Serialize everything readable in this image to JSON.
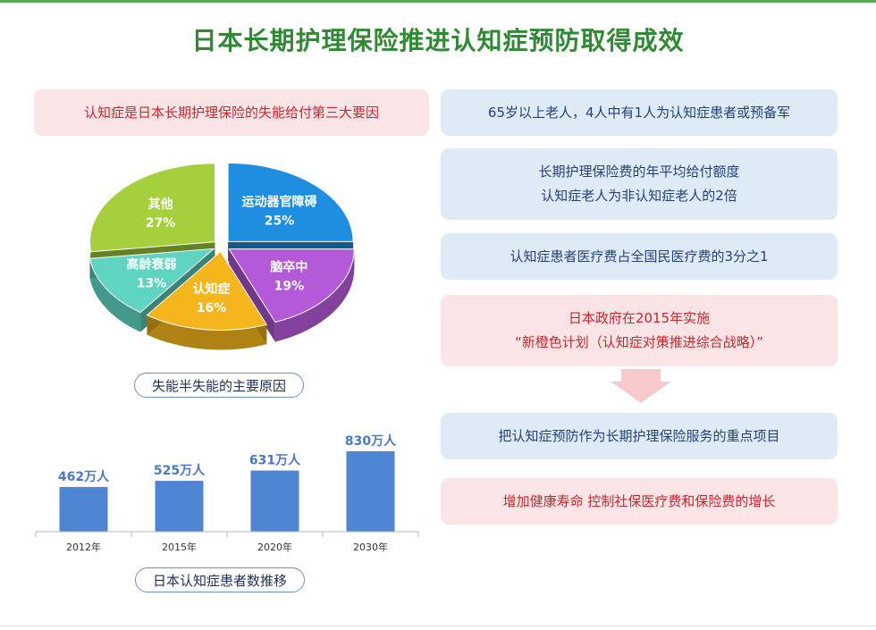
{
  "title": "日本长期护理保险推进认知症预防取得成效",
  "left_top_box": "认知症是日本长期护理保险的失能给付第三大要因",
  "pie_caption": "失能半失能的主要原因",
  "bar_caption": "日本认知症患者数推移",
  "right_boxes": {
    "b1": "65岁以上老人，4人中有1人为认知症患者或预备军",
    "b2_line1": "长期护理保险费的年平均给付额度",
    "b2_line2": "认知症老人为非认知症老人的2倍",
    "b3": "认知症患者医疗费占全国民医疗费的3分之1",
    "b4_line1": "日本政府在2015年实施",
    "b4_line2": "“新橙色计划（认知症对策推进综合战略）”",
    "b5": "把认知症预防作为长期护理保险服务的重点项目",
    "b6": "增加健康寿命  控制社保医疗费和保险费的增长"
  },
  "colors": {
    "title": "#2f8a33",
    "pink_text": "#c5282f",
    "blue_text": "#24427a",
    "bar": "#4f86d2",
    "bar_label": "#4a78c2"
  },
  "chart_data": [
    {
      "type": "pie",
      "title": "",
      "slices": [
        {
          "label": "运动器官障碍",
          "value": 25,
          "value_label": "25%",
          "color": "#1f8ee0"
        },
        {
          "label": "脑卒中",
          "value": 19,
          "value_label": "19%",
          "color": "#b45ad8"
        },
        {
          "label": "认知症",
          "value": 16,
          "value_label": "16%",
          "color": "#f5b51c"
        },
        {
          "label": "高龄衰弱",
          "value": 13,
          "value_label": "13%",
          "color": "#5fd4c0"
        },
        {
          "label": "其他",
          "value": 27,
          "value_label": "27%",
          "color": "#a5cf3c"
        }
      ]
    },
    {
      "type": "bar",
      "title": "",
      "categories": [
        "2012年",
        "2015年",
        "2020年",
        "2030年"
      ],
      "values": [
        462,
        525,
        631,
        830
      ],
      "value_labels": [
        "462万人",
        "525万人",
        "631万人",
        "830万人"
      ],
      "ylim": [
        0,
        830
      ],
      "xlabel": "",
      "ylabel": ""
    }
  ]
}
